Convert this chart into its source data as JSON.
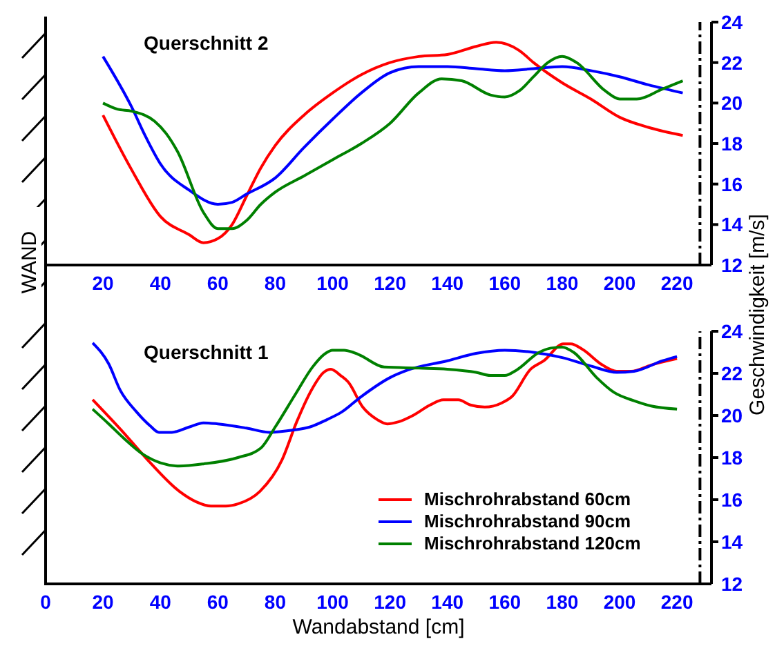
{
  "chart_data": [
    {
      "type": "line",
      "title": "Querschnitt 2",
      "ylabel": "Geschwindigkeit [m/s]",
      "annotations": [
        "WAND"
      ],
      "xlim": [
        0,
        232
      ],
      "xticks": [
        20,
        40,
        60,
        80,
        100,
        120,
        140,
        160,
        180,
        200,
        220
      ],
      "ylim": [
        12,
        24
      ],
      "yticks": [
        12,
        14,
        16,
        18,
        20,
        22,
        24
      ],
      "ref_lines": [
        {
          "axis": "x",
          "value": 228,
          "color": "#000000",
          "line_style": "dashed"
        }
      ],
      "series": [
        {
          "color": "#ff0000",
          "x": [
            20,
            30,
            40,
            50,
            55,
            60,
            65,
            70,
            75,
            80,
            90,
            100,
            110,
            120,
            130,
            140,
            150,
            157,
            165,
            170,
            180,
            190,
            200,
            210,
            222
          ],
          "values": [
            19.4,
            16.7,
            14.4,
            13.5,
            13.1,
            13.3,
            14,
            15.4,
            16.8,
            17.9,
            19.4,
            20.5,
            21.4,
            22,
            22.3,
            22.4,
            22.8,
            23,
            22.6,
            22,
            21,
            20.2,
            19.3,
            18.8,
            18.4
          ]
        },
        {
          "color": "#0000ff",
          "x": [
            20,
            30,
            35,
            40,
            50,
            60,
            65,
            70,
            80,
            90,
            100,
            110,
            120,
            130,
            140,
            150,
            160,
            170,
            180,
            190,
            200,
            210,
            222
          ],
          "values": [
            22.3,
            19.8,
            18.3,
            17,
            15.7,
            15,
            15.1,
            15.5,
            16.3,
            17.8,
            19.2,
            20.5,
            21.5,
            21.8,
            21.8,
            21.7,
            21.6,
            21.7,
            21.8,
            21.6,
            21.3,
            20.9,
            20.5
          ]
        },
        {
          "color": "#008000",
          "x": [
            20,
            25,
            30,
            38,
            42,
            46,
            55,
            60,
            65,
            70,
            75,
            80,
            90,
            100,
            110,
            120,
            130,
            138,
            145,
            155,
            160,
            165,
            170,
            175,
            180,
            185,
            195,
            200,
            206,
            215,
            222
          ],
          "values": [
            20,
            19.7,
            19.6,
            19.1,
            18.5,
            17.6,
            14.6,
            13.8,
            13.8,
            14.2,
            15,
            15.6,
            16.4,
            17.2,
            18,
            19,
            20.5,
            21.2,
            21.1,
            20.4,
            20.3,
            20.6,
            21.3,
            22,
            22.3,
            22,
            20.6,
            20.2,
            20.2,
            20.7,
            21.1
          ]
        }
      ]
    },
    {
      "type": "line",
      "title": "Querschnitt 1",
      "xlabel": "Wandabstand [cm]",
      "legend": "bottom right",
      "xlim": [
        0,
        232
      ],
      "xticks": [
        0,
        20,
        40,
        60,
        80,
        100,
        120,
        140,
        160,
        180,
        200,
        220
      ],
      "ylim": [
        12,
        24
      ],
      "yticks": [
        12,
        14,
        16,
        18,
        20,
        22,
        24
      ],
      "ref_lines": [
        {
          "axis": "x",
          "value": 228,
          "color": "#000000",
          "line_style": "dashed"
        }
      ],
      "series": [
        {
          "name": "Mischrohrabstand 60cm",
          "color": "#ff0000",
          "x": [
            16.4,
            26.4,
            35.5,
            46.6,
            52.5,
            57.6,
            62.8,
            67,
            74.7,
            82.4,
            87.5,
            92.6,
            96.9,
            99.4,
            102.8,
            105.4,
            110.5,
            115.6,
            119,
            123,
            128,
            134,
            138.6,
            143.8,
            148,
            153,
            159,
            162.5,
            169,
            173.6,
            180.4,
            183,
            187,
            194,
            199,
            204,
            211,
            220
          ],
          "values": [
            20.75,
            19.3,
            17.9,
            16.4,
            15.9,
            15.7,
            15.7,
            15.8,
            16.4,
            17.9,
            19.7,
            21.2,
            22.05,
            22.2,
            21.9,
            21.6,
            20.4,
            19.8,
            19.6,
            19.7,
            20,
            20.5,
            20.75,
            20.75,
            20.5,
            20.4,
            20.6,
            20.9,
            22.2,
            22.6,
            23.4,
            23.4,
            23.15,
            22.4,
            22.1,
            22.1,
            22.4,
            22.7
          ]
        },
        {
          "name": "Mischrohrabstand 90cm",
          "color": "#0000ff",
          "x": [
            16.4,
            22,
            26,
            31.5,
            36.5,
            39.5,
            44,
            50,
            55,
            60,
            70,
            78,
            86,
            92,
            98,
            103,
            110,
            120,
            126,
            140,
            150,
            160,
            170,
            180,
            190,
            199,
            205,
            215,
            220
          ],
          "values": [
            23.45,
            22.45,
            21.2,
            20.2,
            19.5,
            19.2,
            19.2,
            19.45,
            19.65,
            19.6,
            19.4,
            19.2,
            19.3,
            19.45,
            19.8,
            20.15,
            20.9,
            21.8,
            22.15,
            22.6,
            22.95,
            23.1,
            23,
            22.75,
            22.35,
            22.05,
            22.1,
            22.6,
            22.8
          ]
        },
        {
          "name": "Mischrohrabstand 120cm",
          "color": "#008000",
          "x": [
            16.4,
            22,
            27,
            34,
            40,
            46.5,
            55,
            67,
            75,
            80,
            87,
            93,
            97,
            100,
            104,
            109,
            118,
            130,
            140,
            150,
            155,
            160,
            164,
            172,
            176,
            180,
            184,
            192,
            198,
            205,
            211,
            220
          ],
          "values": [
            20.3,
            19.6,
            18.95,
            18.15,
            17.75,
            17.6,
            17.7,
            18,
            18.45,
            19.45,
            21,
            22.3,
            22.9,
            23.1,
            23.1,
            22.9,
            22.3,
            22.25,
            22.2,
            22.05,
            21.9,
            21.9,
            22.15,
            23,
            23.2,
            23.25,
            23,
            21.8,
            21.1,
            20.7,
            20.45,
            20.3
          ]
        }
      ]
    }
  ]
}
